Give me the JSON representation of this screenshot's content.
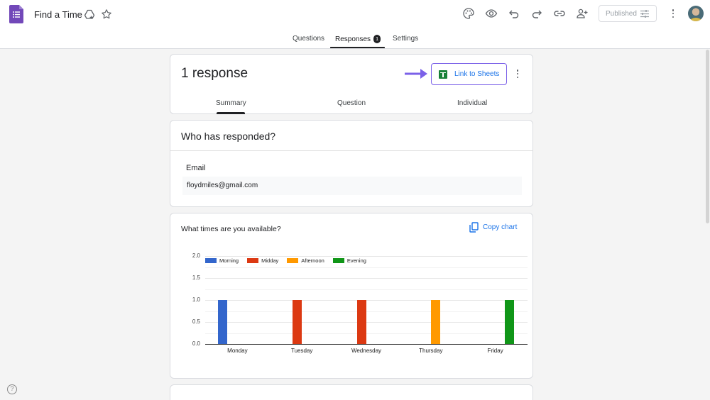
{
  "app": {
    "title": "Find a Time",
    "logo_icon": "google-forms-icon",
    "accent_color": "#673ab7"
  },
  "toolbar": {
    "icons": [
      "palette-icon",
      "eye-preview-icon",
      "undo-icon",
      "redo-icon",
      "link-icon",
      "add-collaborator-icon"
    ],
    "published_label": "Published",
    "published_icon": "tune-icon",
    "more_icon": "more-vert-icon"
  },
  "tabs": [
    {
      "label": "Questions",
      "active": false
    },
    {
      "label": "Responses",
      "active": true,
      "badge": "1"
    },
    {
      "label": "Settings",
      "active": false
    }
  ],
  "responses_card": {
    "title": "1 response",
    "link_button_label": "Link to Sheets",
    "annotation_arrow_color": "#7b61e8",
    "sub_tabs": [
      {
        "label": "Summary",
        "active": true
      },
      {
        "label": "Question",
        "active": false
      },
      {
        "label": "Individual",
        "active": false
      }
    ]
  },
  "who_card": {
    "title": "Who has responded?",
    "field_label": "Email",
    "emails": [
      "floydmiles@gmail.com"
    ]
  },
  "question_card": {
    "title": "What times are you available?",
    "copy_chart_label": "Copy chart"
  },
  "chart_data": {
    "type": "bar",
    "title": "What times are you available?",
    "xlabel": "",
    "ylabel": "",
    "categories": [
      "Monday",
      "Tuesday",
      "Wednesday",
      "Thursday",
      "Friday"
    ],
    "series": [
      {
        "name": "Morning",
        "color": "#3366cc",
        "values": [
          1,
          0,
          0,
          0,
          0
        ]
      },
      {
        "name": "Midday",
        "color": "#dc3912",
        "values": [
          0,
          1,
          1,
          0,
          0
        ]
      },
      {
        "name": "Afternoon",
        "color": "#ff9900",
        "values": [
          0,
          0,
          0,
          1,
          0
        ]
      },
      {
        "name": "Evening",
        "color": "#109618",
        "values": [
          0,
          0,
          0,
          0,
          1
        ]
      }
    ],
    "yticks": [
      "0.0",
      "0.5",
      "1.0",
      "1.5",
      "2.0"
    ],
    "ylim": [
      0,
      2
    ],
    "grid": true,
    "legend_position": "top"
  },
  "help_label": "?"
}
